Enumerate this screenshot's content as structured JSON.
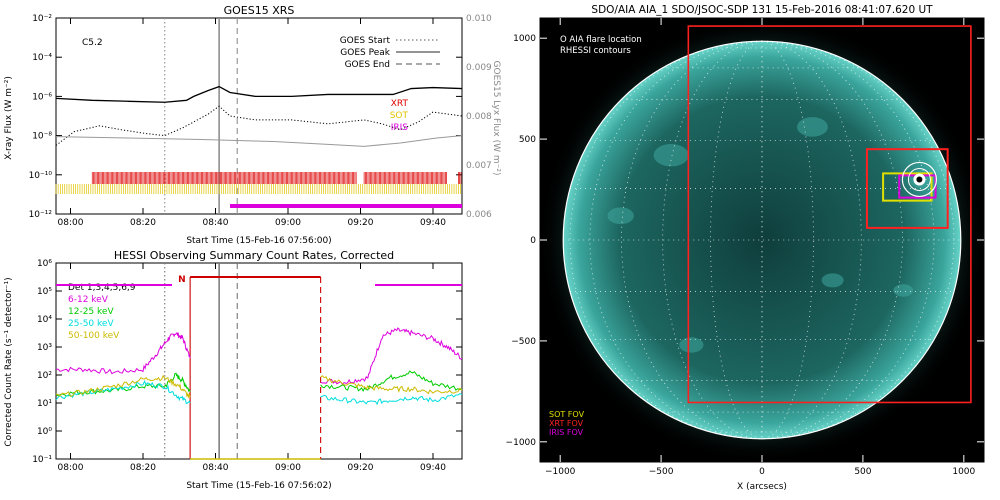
{
  "chart_data": [
    {
      "type": "line",
      "title": "GOES15 XRS",
      "xlabel": "Start Time (15-Feb-16 07:56:00)",
      "ylabel": "X-ray Flux (W m⁻²)",
      "ylabel_right": "GOES15 Lyx Flux (W m⁻²)",
      "x_ticks": [
        "08:00",
        "08:20",
        "08:40",
        "09:00",
        "09:20",
        "09:40"
      ],
      "y_ticks": [
        "10⁻²",
        "10⁻⁴",
        "10⁻⁶",
        "10⁻⁸",
        "10⁻¹⁰",
        "10⁻¹²"
      ],
      "y_ticks_right": [
        "0.010",
        "0.009",
        "0.008",
        "0.007",
        "0.006"
      ],
      "ylim_log10": [
        -12,
        -2
      ],
      "ylim_right": [
        0.006,
        0.01
      ],
      "xlim_minutes": [
        0,
        112
      ],
      "class_label": "C5.2",
      "legend": [
        {
          "label": "GOES Start",
          "style": "dotted",
          "time_min": 30
        },
        {
          "label": "GOES Peak",
          "style": "solid",
          "time_min": 45
        },
        {
          "label": "GOES End",
          "style": "dashed",
          "time_min": 50
        }
      ],
      "instrument_labels": [
        {
          "label": "XRT",
          "color": "#dd0000"
        },
        {
          "label": "SOT",
          "color": "#e0c400"
        },
        {
          "label": "IRIS",
          "color": "#dd00dd"
        }
      ],
      "series": [
        {
          "key": "long",
          "color": "#000000",
          "x": [
            0,
            10,
            20,
            30,
            36,
            38,
            42,
            45,
            48,
            55,
            65,
            75,
            85,
            93,
            98,
            104,
            112
          ],
          "log_flux": [
            -6.1,
            -6.2,
            -6.25,
            -6.3,
            -6.2,
            -6.0,
            -5.7,
            -5.5,
            -5.8,
            -6.0,
            -6.0,
            -5.9,
            -5.9,
            -5.9,
            -5.6,
            -5.55,
            -5.6
          ]
        },
        {
          "key": "short",
          "color": "#000000",
          "x": [
            0,
            5,
            12,
            18,
            25,
            30,
            35,
            38,
            42,
            45,
            48,
            55,
            65,
            75,
            85,
            90,
            95,
            100,
            104,
            112
          ],
          "log_flux": [
            -8.5,
            -7.8,
            -7.5,
            -7.7,
            -7.9,
            -8.0,
            -7.6,
            -7.3,
            -6.9,
            -6.5,
            -7.0,
            -7.2,
            -7.2,
            -7.4,
            -7.2,
            -7.4,
            -7.7,
            -7.3,
            -6.8,
            -7.0
          ]
        },
        {
          "key": "lyx",
          "color": "#999999",
          "x": [
            0,
            20,
            40,
            60,
            75,
            85,
            95,
            105,
            112
          ],
          "lyx_flux": [
            0.00758,
            0.00755,
            0.00752,
            0.00748,
            0.00742,
            0.00738,
            0.00745,
            0.00755,
            0.0076
          ]
        }
      ],
      "coverage_bars": [
        {
          "instrument": "XRT",
          "color": "#dd0000",
          "segments": [
            [
              10,
              83
            ],
            [
              85,
              108
            ],
            [
              111,
              112
            ]
          ]
        },
        {
          "instrument": "SOT",
          "color": "#e0c400",
          "segments": [
            [
              0,
              112
            ]
          ]
        },
        {
          "instrument": "IRIS",
          "color": "#dd00dd",
          "segments": [
            [
              48,
              112
            ]
          ]
        }
      ]
    },
    {
      "type": "line",
      "title": "HESSI Observing Summary Count Rates, Corrected",
      "xlabel": "Start Time (15-Feb-16 07:56:02)",
      "ylabel": "Corrected Count Rate (s⁻¹ detector⁻¹)",
      "x_ticks": [
        "08:00",
        "08:20",
        "08:40",
        "09:00",
        "09:20",
        "09:40"
      ],
      "y_ticks": [
        "10⁶",
        "10⁵",
        "10⁴",
        "10³",
        "10²",
        "10¹",
        "10⁰",
        "10⁻¹"
      ],
      "ylim_log10": [
        -1,
        6
      ],
      "xlim_minutes": [
        0,
        112
      ],
      "det_label": "Det 1,3,4,5,6,9",
      "night_label": "N",
      "night_interval": [
        37,
        73
      ],
      "vlines": [
        {
          "time_min": 30,
          "style": "dotted",
          "color": "#777777"
        },
        {
          "time_min": 37,
          "style": "solid",
          "color": "#cc0000"
        },
        {
          "time_min": 45,
          "style": "solid",
          "color": "#777777"
        },
        {
          "time_min": 50,
          "style": "dashed",
          "color": "#777777"
        },
        {
          "time_min": 73,
          "style": "dashed",
          "color": "#cc0000"
        }
      ],
      "series": [
        {
          "name": "6-12 keV",
          "color": "#dd00dd",
          "segments": [
            {
              "x": [
                0,
                8,
                16,
                24,
                28,
                31,
                33,
                35,
                37
              ],
              "log_rate": [
                2.2,
                2.2,
                2.1,
                2.2,
                2.8,
                3.3,
                3.5,
                3.3,
                2.6
              ]
            },
            {
              "x": [
                73,
                80,
                86,
                90,
                94,
                98,
                104,
                108,
                112
              ],
              "log_rate": [
                1.8,
                1.75,
                1.9,
                3.4,
                3.6,
                3.5,
                3.3,
                3.0,
                2.6
              ]
            }
          ]
        },
        {
          "name": "12-25 keV",
          "color": "#00cc00",
          "segments": [
            {
              "x": [
                0,
                8,
                16,
                24,
                30,
                33,
                35,
                37
              ],
              "log_rate": [
                1.3,
                1.4,
                1.45,
                1.6,
                1.6,
                2.0,
                1.8,
                1.4
              ]
            },
            {
              "x": [
                73,
                80,
                86,
                92,
                98,
                104,
                112
              ],
              "log_rate": [
                1.65,
                1.55,
                1.5,
                1.9,
                2.1,
                1.7,
                1.5
              ]
            }
          ]
        },
        {
          "name": "25-50 keV",
          "color": "#00dddd",
          "segments": [
            {
              "x": [
                0,
                8,
                16,
                24,
                30,
                34,
                37
              ],
              "log_rate": [
                1.2,
                1.35,
                1.5,
                1.7,
                1.6,
                1.2,
                1.0
              ]
            },
            {
              "x": [
                73,
                80,
                86,
                92,
                98,
                104,
                112
              ],
              "log_rate": [
                1.2,
                1.1,
                1.0,
                1.1,
                1.2,
                1.1,
                1.3
              ]
            }
          ]
        },
        {
          "name": "50-100 keV",
          "color": "#ccbb00",
          "segments": [
            {
              "x": [
                0,
                8,
                16,
                24,
                30,
                34,
                37
              ],
              "log_rate": [
                1.25,
                1.4,
                1.6,
                1.85,
                1.9,
                1.6,
                1.2
              ]
            },
            {
              "x": [
                73,
                80,
                86,
                92,
                98,
                104,
                112
              ],
              "log_rate": [
                1.9,
                1.7,
                1.55,
                1.5,
                1.5,
                1.4,
                1.45
              ]
            }
          ]
        }
      ]
    },
    {
      "type": "scatter",
      "title": "SDO/AIA AIA_1 SDO/JSOC-SDP 131 15-Feb-2016 08:41:07.620 UT",
      "xlabel": "X (arcsecs)",
      "ylabel": "",
      "x_ticks": [
        -1000,
        -500,
        0,
        500,
        1000
      ],
      "y_ticks": [
        1000,
        500,
        0,
        -500,
        -1000
      ],
      "xlim": [
        -1100,
        1100
      ],
      "ylim": [
        -1100,
        1100
      ],
      "solar_radius_arcsec": 985,
      "legend_top": [
        "O AIA flare location",
        "RHESSI contours"
      ],
      "legend_bottom": [
        {
          "label": "SOT FOV",
          "color": "#e0e000"
        },
        {
          "label": "XRT FOV",
          "color": "#ff2020"
        },
        {
          "label": "IRIS FOV",
          "color": "#dd00dd"
        }
      ],
      "flare_location": [
        780,
        300
      ],
      "fov_boxes": [
        {
          "instrument": "XRT",
          "color": "#ff2020",
          "x": [
            -365,
            1035
          ],
          "y": [
            -805,
            1060
          ]
        },
        {
          "instrument": "XRT zoom",
          "color": "#ff2020",
          "x": [
            520,
            920
          ],
          "y": [
            60,
            450
          ]
        },
        {
          "instrument": "SOT",
          "color": "#e0e000",
          "x": [
            600,
            840
          ],
          "y": [
            195,
            330
          ]
        },
        {
          "instrument": "IRIS",
          "color": "#dd00dd",
          "x": [
            680,
            860
          ],
          "y": [
            210,
            320
          ]
        }
      ]
    }
  ]
}
